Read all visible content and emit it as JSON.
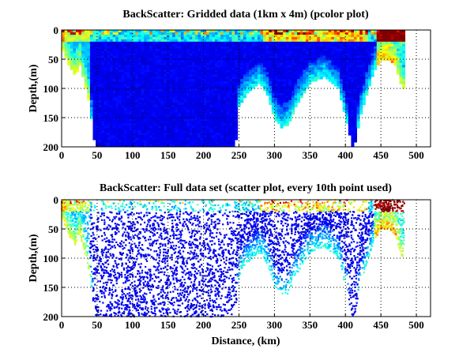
{
  "chart_data": [
    {
      "type": "heatmap",
      "title": "BackScatter: Gridded data (1km x 4m) (pcolor plot)",
      "xlabel": "",
      "ylabel": "Depth,(m)",
      "xlim": [
        0,
        520
      ],
      "ylim": [
        200,
        0
      ],
      "y_reversed": true,
      "xticks": [
        0,
        50,
        100,
        150,
        200,
        250,
        300,
        350,
        400,
        450,
        500
      ],
      "yticks": [
        0,
        50,
        100,
        150,
        200
      ],
      "grid": true,
      "colormap": "jet",
      "bottom_depth_profile": {
        "distance_km": [
          0,
          10,
          20,
          25,
          30,
          40,
          45,
          48,
          100,
          245,
          250,
          260,
          270,
          280,
          290,
          300,
          310,
          320,
          330,
          340,
          350,
          370,
          390,
          400,
          410,
          415,
          420,
          430,
          440,
          450,
          460,
          470,
          480,
          483
        ],
        "depth_m": [
          30,
          60,
          80,
          55,
          80,
          130,
          180,
          200,
          200,
          200,
          130,
          110,
          100,
          90,
          110,
          150,
          165,
          160,
          130,
          110,
          90,
          80,
          100,
          150,
          200,
          190,
          150,
          110,
          70,
          50,
          50,
          60,
          100,
          100
        ]
      }
    },
    {
      "type": "scatter",
      "title": "BackScatter: Full data set (scatter plot, every 10th point used)",
      "xlabel": "Distance, (km)",
      "ylabel": "Depth,(m)",
      "xlim": [
        0,
        520
      ],
      "ylim": [
        200,
        0
      ],
      "y_reversed": true,
      "xticks": [
        0,
        50,
        100,
        150,
        200,
        250,
        300,
        350,
        400,
        450,
        500
      ],
      "yticks": [
        0,
        50,
        100,
        150,
        200
      ],
      "grid": true,
      "colormap": "jet"
    }
  ]
}
